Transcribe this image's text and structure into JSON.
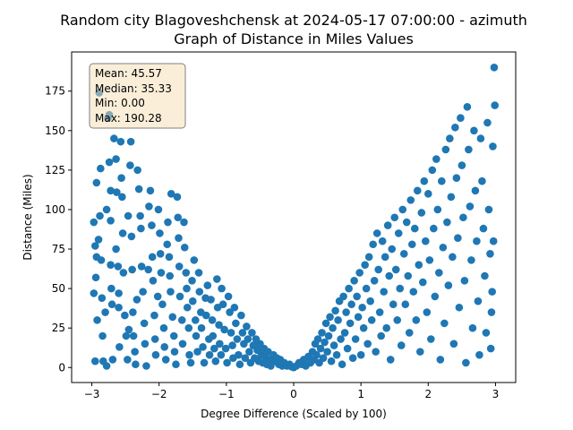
{
  "chart_data": {
    "type": "scatter",
    "title_line1": "Random city Blagoveshchensk at 2024-05-17 07:00:00  - azimuth",
    "title_line2": "Graph of Distance in Miles Values",
    "xlabel": "Degree Difference (Scaled by 100)",
    "ylabel": "Distance (Miles)",
    "xlim": [
      -3.3,
      3.3
    ],
    "ylim": [
      -9.5,
      199.8
    ],
    "xticks": [
      -3,
      -2,
      -1,
      0,
      1,
      2,
      3
    ],
    "yticks": [
      0,
      25,
      50,
      75,
      100,
      125,
      150,
      175
    ],
    "grid": false,
    "point_color": "#1f77b4",
    "stats": {
      "mean": "Mean: 45.57",
      "median": "Median: 35.33",
      "min": "Min: 0.00",
      "max": "Max: 190.28",
      "placement": "top-left"
    },
    "points": [
      [
        -2.97,
        92
      ],
      [
        -2.95,
        77
      ],
      [
        -2.93,
        70
      ],
      [
        -2.94,
        57
      ],
      [
        -2.97,
        47
      ],
      [
        -2.92,
        30
      ],
      [
        -2.95,
        4
      ],
      [
        -2.93,
        117
      ],
      [
        -2.89,
        174
      ],
      [
        -2.87,
        126
      ],
      [
        -2.88,
        96
      ],
      [
        -2.9,
        81
      ],
      [
        -2.86,
        68
      ],
      [
        -2.85,
        44
      ],
      [
        -2.84,
        20
      ],
      [
        -2.83,
        4
      ],
      [
        -2.8,
        35
      ],
      [
        -2.78,
        1
      ],
      [
        -2.78,
        100
      ],
      [
        -2.76,
        158
      ],
      [
        -2.74,
        160
      ],
      [
        -2.74,
        130
      ],
      [
        -2.72,
        112
      ],
      [
        -2.72,
        93
      ],
      [
        -2.72,
        65
      ],
      [
        -2.71,
        50
      ],
      [
        -2.7,
        40
      ],
      [
        -2.69,
        5
      ],
      [
        -2.67,
        145
      ],
      [
        -2.64,
        132
      ],
      [
        -2.63,
        111
      ],
      [
        -2.64,
        75
      ],
      [
        -2.61,
        64
      ],
      [
        -2.6,
        47
      ],
      [
        -2.6,
        38
      ],
      [
        -2.59,
        13
      ],
      [
        -2.57,
        143
      ],
      [
        -2.56,
        120
      ],
      [
        -2.55,
        108
      ],
      [
        -2.54,
        85
      ],
      [
        -2.53,
        60
      ],
      [
        -2.51,
        33
      ],
      [
        -2.49,
        20
      ],
      [
        -2.47,
        5
      ],
      [
        -2.45,
        24
      ],
      [
        -2.46,
        96
      ],
      [
        -2.43,
        128
      ],
      [
        -2.42,
        143
      ],
      [
        -2.41,
        83
      ],
      [
        -2.4,
        62
      ],
      [
        -2.39,
        35
      ],
      [
        -2.38,
        20
      ],
      [
        -2.36,
        10
      ],
      [
        -2.35,
        2
      ],
      [
        -2.33,
        43
      ],
      [
        -2.32,
        125
      ],
      [
        -2.3,
        113
      ],
      [
        -2.28,
        96
      ],
      [
        -2.27,
        88
      ],
      [
        -2.26,
        64
      ],
      [
        -2.24,
        48
      ],
      [
        -2.22,
        28
      ],
      [
        -2.21,
        15
      ],
      [
        -2.19,
        1
      ],
      [
        -2.16,
        62
      ],
      [
        -2.15,
        102
      ],
      [
        -2.13,
        112
      ],
      [
        -2.11,
        90
      ],
      [
        -2.1,
        70
      ],
      [
        -2.09,
        55
      ],
      [
        -2.07,
        33
      ],
      [
        -2.06,
        18
      ],
      [
        -2.05,
        8
      ],
      [
        -2.02,
        45
      ],
      [
        -2.01,
        100
      ],
      [
        -1.99,
        85
      ],
      [
        -1.98,
        72
      ],
      [
        -1.97,
        60
      ],
      [
        -1.95,
        40
      ],
      [
        -1.93,
        25
      ],
      [
        -1.92,
        13
      ],
      [
        -1.9,
        5
      ],
      [
        -1.88,
        78
      ],
      [
        -1.87,
        92
      ],
      [
        -1.85,
        70
      ],
      [
        -1.84,
        58
      ],
      [
        -1.83,
        48
      ],
      [
        -1.82,
        110
      ],
      [
        -1.8,
        32
      ],
      [
        -1.78,
        20
      ],
      [
        -1.77,
        10
      ],
      [
        -1.75,
        2
      ],
      [
        -1.73,
        108
      ],
      [
        -1.72,
        95
      ],
      [
        -1.71,
        82
      ],
      [
        -1.7,
        64
      ],
      [
        -1.69,
        45
      ],
      [
        -1.66,
        30
      ],
      [
        -1.65,
        15
      ],
      [
        -1.63,
        92
      ],
      [
        -1.62,
        76
      ],
      [
        -1.6,
        60
      ],
      [
        -1.59,
        50
      ],
      [
        -1.58,
        38
      ],
      [
        -1.56,
        25
      ],
      [
        -1.55,
        8
      ],
      [
        -1.53,
        3
      ],
      [
        -1.51,
        55
      ],
      [
        -1.5,
        42
      ],
      [
        -1.48,
        68
      ],
      [
        -1.46,
        30
      ],
      [
        -1.45,
        20
      ],
      [
        -1.43,
        10
      ],
      [
        -1.41,
        60
      ],
      [
        -1.4,
        48
      ],
      [
        -1.38,
        35
      ],
      [
        -1.37,
        25
      ],
      [
        -1.35,
        13
      ],
      [
        -1.33,
        3
      ],
      [
        -1.31,
        44
      ],
      [
        -1.3,
        33
      ],
      [
        -1.28,
        52
      ],
      [
        -1.26,
        18
      ],
      [
        -1.25,
        8
      ],
      [
        -1.23,
        43
      ],
      [
        -1.21,
        30
      ],
      [
        -1.2,
        20
      ],
      [
        -1.18,
        12
      ],
      [
        -1.16,
        4
      ],
      [
        -1.14,
        56
      ],
      [
        -1.13,
        38
      ],
      [
        -1.11,
        27
      ],
      [
        -1.1,
        15
      ],
      [
        -1.08,
        8
      ],
      [
        -1.07,
        50
      ],
      [
        -1.05,
        40
      ],
      [
        -1.03,
        24
      ],
      [
        -1.01,
        12
      ],
      [
        -0.99,
        3
      ],
      [
        -0.97,
        45
      ],
      [
        -0.95,
        35
      ],
      [
        -0.93,
        22
      ],
      [
        -0.91,
        14
      ],
      [
        -0.9,
        6
      ],
      [
        -0.88,
        38
      ],
      [
        -0.86,
        28
      ],
      [
        -0.84,
        18
      ],
      [
        -0.82,
        8
      ],
      [
        -0.8,
        2
      ],
      [
        -0.78,
        33
      ],
      [
        -0.76,
        22
      ],
      [
        -0.74,
        15
      ],
      [
        -0.72,
        6
      ],
      [
        -0.7,
        26
      ],
      [
        -0.68,
        18
      ],
      [
        -0.66,
        10
      ],
      [
        -0.64,
        3
      ],
      [
        -0.62,
        22
      ],
      [
        -0.6,
        14
      ],
      [
        -0.58,
        6
      ],
      [
        -0.56,
        18
      ],
      [
        -0.54,
        11
      ],
      [
        -0.52,
        4
      ],
      [
        -0.5,
        15
      ],
      [
        -0.48,
        8
      ],
      [
        -0.46,
        3
      ],
      [
        -0.44,
        12
      ],
      [
        -0.42,
        7
      ],
      [
        -0.4,
        2
      ],
      [
        -0.38,
        10
      ],
      [
        -0.36,
        5
      ],
      [
        -0.34,
        1
      ],
      [
        -0.3,
        8
      ],
      [
        -0.28,
        4
      ],
      [
        -0.25,
        6
      ],
      [
        -0.22,
        2
      ],
      [
        -0.2,
        5
      ],
      [
        -0.17,
        1
      ],
      [
        -0.14,
        3
      ],
      [
        -0.1,
        1
      ],
      [
        -0.06,
        2
      ],
      [
        -0.03,
        0.5
      ],
      [
        0.0,
        0
      ],
      [
        0.04,
        1
      ],
      [
        0.08,
        3
      ],
      [
        0.12,
        2
      ],
      [
        0.15,
        5
      ],
      [
        0.18,
        1
      ],
      [
        0.22,
        7
      ],
      [
        0.25,
        3
      ],
      [
        0.28,
        10
      ],
      [
        0.3,
        5
      ],
      [
        0.32,
        15
      ],
      [
        0.34,
        8
      ],
      [
        0.36,
        18
      ],
      [
        0.38,
        3
      ],
      [
        0.4,
        12
      ],
      [
        0.42,
        22
      ],
      [
        0.44,
        6
      ],
      [
        0.46,
        16
      ],
      [
        0.48,
        28
      ],
      [
        0.5,
        10
      ],
      [
        0.52,
        20
      ],
      [
        0.54,
        32
      ],
      [
        0.56,
        4
      ],
      [
        0.58,
        25
      ],
      [
        0.6,
        14
      ],
      [
        0.62,
        36
      ],
      [
        0.64,
        8
      ],
      [
        0.66,
        30
      ],
      [
        0.68,
        42
      ],
      [
        0.7,
        18
      ],
      [
        0.72,
        2
      ],
      [
        0.74,
        45
      ],
      [
        0.76,
        22
      ],
      [
        0.78,
        35
      ],
      [
        0.8,
        12
      ],
      [
        0.82,
        50
      ],
      [
        0.84,
        28
      ],
      [
        0.86,
        40
      ],
      [
        0.88,
        6
      ],
      [
        0.9,
        55
      ],
      [
        0.92,
        18
      ],
      [
        0.94,
        45
      ],
      [
        0.96,
        32
      ],
      [
        0.98,
        60
      ],
      [
        1.0,
        8
      ],
      [
        1.02,
        38
      ],
      [
        1.04,
        25
      ],
      [
        1.06,
        65
      ],
      [
        1.08,
        50
      ],
      [
        1.1,
        15
      ],
      [
        1.12,
        70
      ],
      [
        1.14,
        42
      ],
      [
        1.16,
        30
      ],
      [
        1.18,
        78
      ],
      [
        1.2,
        55
      ],
      [
        1.22,
        10
      ],
      [
        1.24,
        85
      ],
      [
        1.26,
        62
      ],
      [
        1.28,
        35
      ],
      [
        1.3,
        20
      ],
      [
        1.32,
        80
      ],
      [
        1.34,
        48
      ],
      [
        1.36,
        70
      ],
      [
        1.38,
        25
      ],
      [
        1.4,
        90
      ],
      [
        1.42,
        58
      ],
      [
        1.44,
        5
      ],
      [
        1.46,
        75
      ],
      [
        1.48,
        40
      ],
      [
        1.5,
        95
      ],
      [
        1.52,
        62
      ],
      [
        1.54,
        30
      ],
      [
        1.56,
        85
      ],
      [
        1.58,
        50
      ],
      [
        1.6,
        14
      ],
      [
        1.62,
        100
      ],
      [
        1.64,
        72
      ],
      [
        1.66,
        40
      ],
      [
        1.68,
        92
      ],
      [
        1.7,
        58
      ],
      [
        1.72,
        22
      ],
      [
        1.74,
        106
      ],
      [
        1.76,
        78
      ],
      [
        1.78,
        48
      ],
      [
        1.8,
        88
      ],
      [
        1.82,
        30
      ],
      [
        1.84,
        112
      ],
      [
        1.86,
        65
      ],
      [
        1.88,
        10
      ],
      [
        1.9,
        98
      ],
      [
        1.92,
        54
      ],
      [
        1.94,
        118
      ],
      [
        1.96,
        80
      ],
      [
        1.98,
        35
      ],
      [
        2.0,
        110
      ],
      [
        2.02,
        68
      ],
      [
        2.04,
        18
      ],
      [
        2.06,
        125
      ],
      [
        2.08,
        88
      ],
      [
        2.1,
        45
      ],
      [
        2.12,
        132
      ],
      [
        2.14,
        100
      ],
      [
        2.16,
        60
      ],
      [
        2.18,
        5
      ],
      [
        2.2,
        118
      ],
      [
        2.22,
        76
      ],
      [
        2.24,
        28
      ],
      [
        2.26,
        138
      ],
      [
        2.28,
        92
      ],
      [
        2.3,
        52
      ],
      [
        2.32,
        145
      ],
      [
        2.34,
        108
      ],
      [
        2.36,
        70
      ],
      [
        2.38,
        15
      ],
      [
        2.4,
        152
      ],
      [
        2.42,
        120
      ],
      [
        2.44,
        82
      ],
      [
        2.46,
        38
      ],
      [
        2.48,
        158
      ],
      [
        2.5,
        128
      ],
      [
        2.52,
        95
      ],
      [
        2.54,
        55
      ],
      [
        2.56,
        3
      ],
      [
        2.58,
        165
      ],
      [
        2.6,
        138
      ],
      [
        2.62,
        102
      ],
      [
        2.64,
        68
      ],
      [
        2.66,
        25
      ],
      [
        2.68,
        150
      ],
      [
        2.7,
        112
      ],
      [
        2.72,
        80
      ],
      [
        2.74,
        42
      ],
      [
        2.76,
        8
      ],
      [
        2.78,
        145
      ],
      [
        2.8,
        118
      ],
      [
        2.82,
        88
      ],
      [
        2.84,
        58
      ],
      [
        2.86,
        22
      ],
      [
        2.88,
        155
      ],
      [
        2.9,
        100
      ],
      [
        2.92,
        72
      ],
      [
        2.94,
        35
      ],
      [
        2.96,
        140
      ],
      [
        2.98,
        190
      ],
      [
        2.99,
        166
      ],
      [
        2.97,
        80
      ],
      [
        2.95,
        48
      ],
      [
        2.93,
        12
      ]
    ]
  }
}
